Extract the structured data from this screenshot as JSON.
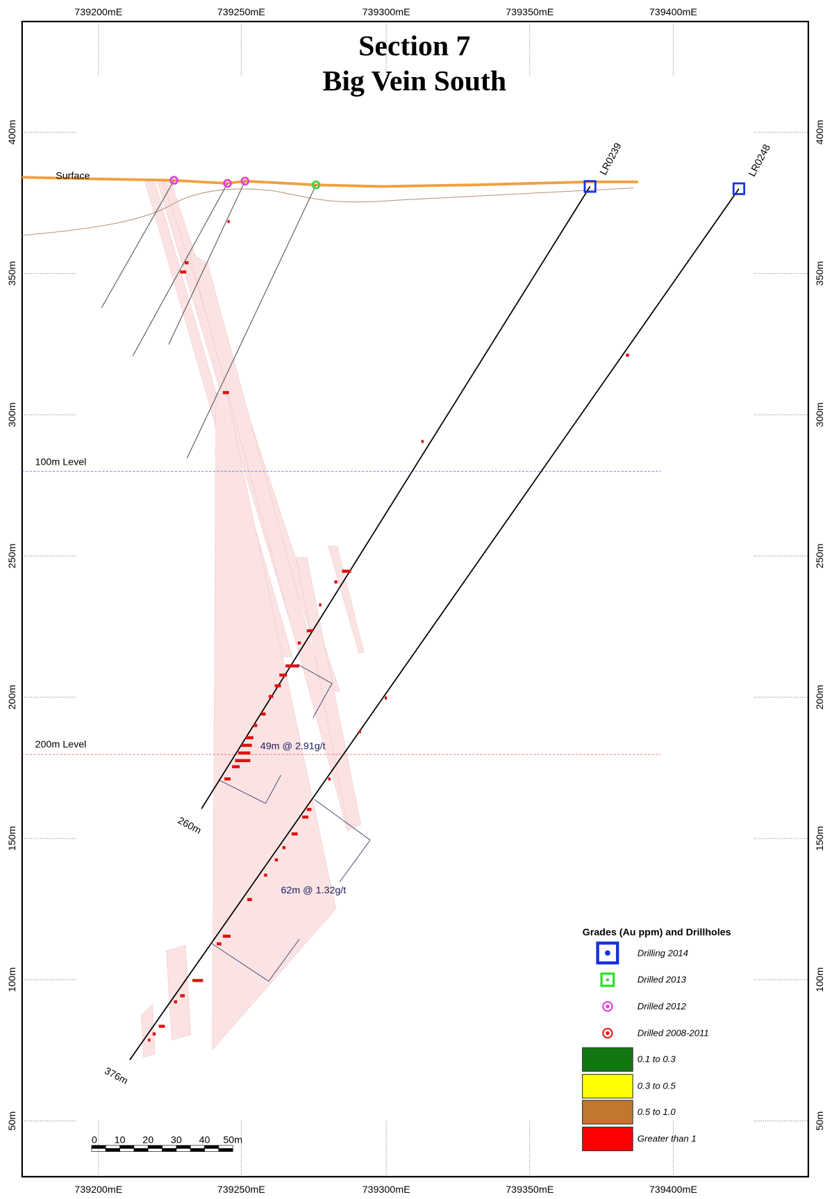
{
  "header": {
    "title_lines": [
      "Section 7",
      "Big Vein South"
    ]
  },
  "axes": {
    "eastings": [
      "739200mE",
      "739250mE",
      "739300mE",
      "739350mE",
      "739400mE"
    ],
    "elevations": [
      "400m",
      "350m",
      "300m",
      "250m",
      "200m",
      "150m",
      "100m",
      "50m"
    ]
  },
  "labels": {
    "surface": "Surface",
    "level_100": "100m Level",
    "level_200": "200m Level"
  },
  "drillholes": [
    {
      "id": "LR0239",
      "depth": "260m"
    },
    {
      "id": "LR0248",
      "depth": "376m"
    }
  ],
  "intercepts": [
    "49m @ 2.91g/t",
    "62m @ 1.32g/t"
  ],
  "legend": {
    "title": "Grades (Au ppm) and Drillholes",
    "items": [
      "Drilling 2014",
      "Drilled 2013",
      "Drilled 2012",
      "Drilled 2008-2011",
      "0.1 to 0.3",
      "0.3 to 0.5",
      "0.5 to 1.0",
      "Greater than 1"
    ]
  },
  "scale_bar": [
    "0",
    "10",
    "20",
    "30",
    "40",
    "50m"
  ]
}
